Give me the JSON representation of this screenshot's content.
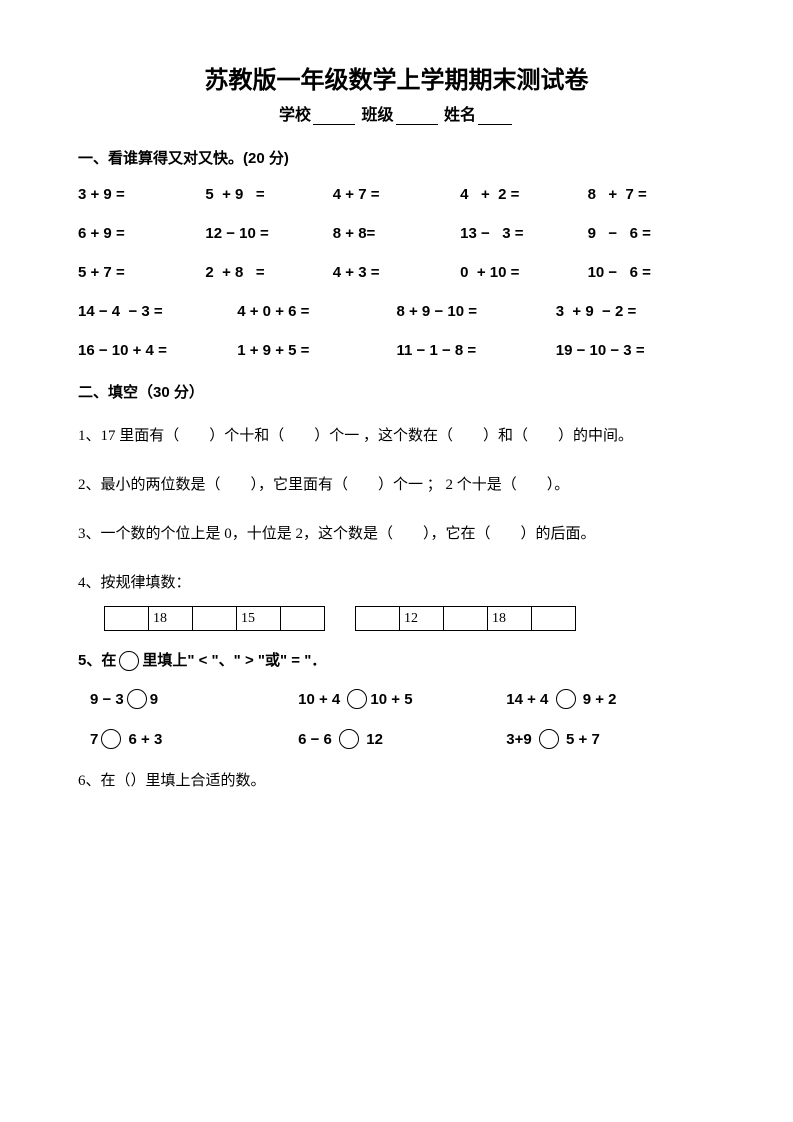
{
  "title": "苏教版一年级数学上学期期末测试卷",
  "info": {
    "school": "学校",
    "class": "班级",
    "name": "姓名"
  },
  "s1": {
    "head": "一、看谁算得又对又快。(20 分)",
    "rows5": [
      [
        "3 + 9 =",
        "5  + 9   =",
        "4 + 7 =",
        "4   +  2 =",
        "8   +  7 ="
      ],
      [
        "6 + 9 =",
        "12 − 10 =",
        "8 + 8=",
        "13 −   3 =",
        "9   −   6 ="
      ],
      [
        "5 + 7 =",
        "2  + 8   =",
        "4 + 3 =",
        "0  + 10 =",
        "10 −   6 ="
      ]
    ],
    "rows4": [
      [
        "14 − 4  − 3 =",
        "4 + 0 + 6 =",
        "8 + 9 − 10 =",
        "3  + 9  − 2 ="
      ],
      [
        "16 − 10 + 4 =",
        "1 + 9 + 5 =",
        "11 − 1 − 8 =",
        "19 − 10 − 3 ="
      ]
    ]
  },
  "s2": {
    "head": "二、填空（30 分）",
    "q1": "1、17 里面有（　　）个十和（　　）个一 ，这个数在（　　）和（　　）的中间。",
    "q2": "2、最小的两位数是（　　），它里面有（　　）个一 ； 2 个十是（　　）。",
    "q3": "3、一个数的个位上是 0，十位是 2，这个数是（　　），它在（　　）的后面。",
    "q4": "4、按规律填数：",
    "seq1": [
      "",
      "18",
      "",
      "15",
      ""
    ],
    "seq2": [
      "",
      "12",
      "",
      "18",
      ""
    ],
    "q5head": "5、在　　里填上\" < \"、\" > \"或\" = \"．",
    "cmp": [
      [
        [
          "9 − 3",
          "9"
        ],
        [
          "10 + 4 ",
          "10 + 5"
        ],
        [
          "14 + 4 ",
          " 9 + 2"
        ]
      ],
      [
        [
          "7",
          " 6 + 3"
        ],
        [
          "6 − 6 ",
          " 12"
        ],
        [
          "3+9 ",
          " 5 + 7"
        ]
      ]
    ],
    "q6": "6、在（）里填上合适的数。"
  }
}
